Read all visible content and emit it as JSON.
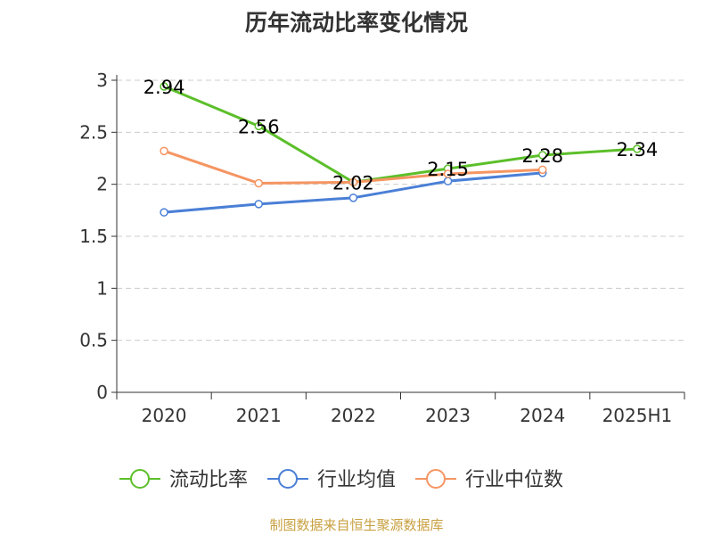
{
  "title": "历年流动比率变化情况",
  "source": "制图数据来自恒生聚源数据库",
  "colors": {
    "axis": "#333333",
    "grid": "#cccccc",
    "text": "#333333",
    "source": "#c8a040"
  },
  "chart_data": {
    "type": "line",
    "title": "历年流动比率变化情况",
    "categories": [
      "2020",
      "2021",
      "2022",
      "2023",
      "2024",
      "2025H1"
    ],
    "ylim": [
      0,
      3
    ],
    "yticks": [
      0,
      0.5,
      1,
      1.5,
      2,
      2.5,
      3
    ],
    "ytick_labels": [
      "0",
      "0.5",
      "1",
      "1.5",
      "2",
      "2.5",
      "3"
    ],
    "grid": true,
    "legend_position": "bottom-center",
    "series": [
      {
        "name": "流动比率",
        "color": "#5cbf2a",
        "show_labels": true,
        "values": [
          2.94,
          2.56,
          2.02,
          2.15,
          2.28,
          2.34
        ],
        "labels": [
          "2.94",
          "2.56",
          "2.02",
          "2.15",
          "2.28",
          "2.34"
        ]
      },
      {
        "name": "行业均值",
        "color": "#4a7fd6",
        "show_labels": false,
        "values": [
          1.73,
          1.81,
          1.87,
          2.03,
          2.11,
          null
        ]
      },
      {
        "name": "行业中位数",
        "color": "#f59562",
        "show_labels": false,
        "values": [
          2.32,
          2.01,
          2.02,
          2.1,
          2.14,
          null
        ]
      }
    ]
  }
}
